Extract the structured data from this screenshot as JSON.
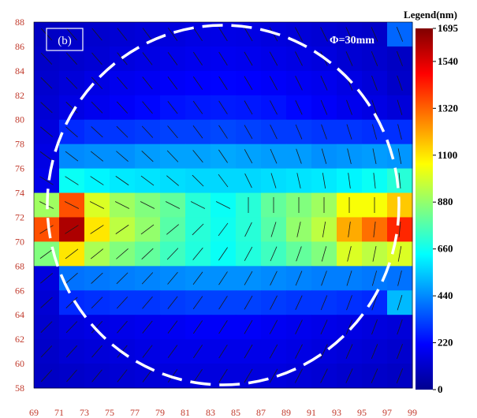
{
  "chart_data": {
    "type": "heatmap",
    "panel_label": "(b)",
    "annotation": "Φ=30mm",
    "legend_title": "Legend(nm)",
    "x_ticks": [
      "69",
      "71",
      "73",
      "75",
      "77",
      "79",
      "81",
      "83",
      "85",
      "87",
      "89",
      "91",
      "93",
      "95",
      "97",
      "99"
    ],
    "y_ticks": [
      "58",
      "60",
      "62",
      "64",
      "66",
      "68",
      "70",
      "72",
      "74",
      "76",
      "78",
      "80",
      "82",
      "84",
      "86",
      "88"
    ],
    "xlim": [
      69,
      99
    ],
    "ylim": [
      58,
      88
    ],
    "color_scale": {
      "min": 0,
      "max": 1695,
      "ticks": [
        "0",
        "220",
        "440",
        "660",
        "880",
        "1100",
        "1320",
        "1540",
        "1695"
      ],
      "colors": [
        "#00008f",
        "#0000ff",
        "#0080ff",
        "#00ffff",
        "#80ff80",
        "#ffff00",
        "#ff8000",
        "#ff0000",
        "#800000"
      ]
    },
    "row_y": [
      87,
      85,
      83,
      81,
      79,
      77,
      75,
      73,
      71,
      69,
      67,
      65,
      63,
      61,
      59
    ],
    "col_x": [
      70,
      72,
      74,
      76,
      78,
      80,
      82,
      84,
      86,
      88,
      90,
      92,
      94,
      96,
      98
    ],
    "values": [
      [
        100,
        110,
        120,
        130,
        140,
        150,
        160,
        165,
        160,
        150,
        140,
        130,
        120,
        110,
        380
      ],
      [
        110,
        120,
        130,
        150,
        160,
        170,
        180,
        185,
        180,
        170,
        160,
        150,
        130,
        120,
        100
      ],
      [
        120,
        140,
        160,
        180,
        190,
        200,
        210,
        215,
        210,
        200,
        190,
        180,
        160,
        140,
        110
      ],
      [
        130,
        160,
        180,
        200,
        220,
        240,
        250,
        255,
        250,
        240,
        220,
        200,
        180,
        160,
        140
      ],
      [
        150,
        280,
        300,
        300,
        310,
        320,
        320,
        330,
        320,
        310,
        310,
        300,
        300,
        290,
        290
      ],
      [
        160,
        440,
        450,
        450,
        470,
        480,
        480,
        490,
        480,
        470,
        470,
        450,
        460,
        470,
        460
      ],
      [
        170,
        650,
        620,
        600,
        590,
        580,
        570,
        570,
        570,
        580,
        590,
        600,
        620,
        650,
        700
      ],
      [
        900,
        1350,
        1000,
        900,
        850,
        800,
        700,
        650,
        700,
        800,
        850,
        900,
        1050,
        1050,
        1150
      ],
      [
        1350,
        1620,
        1100,
        950,
        880,
        780,
        700,
        660,
        700,
        780,
        880,
        950,
        1200,
        1300,
        1420
      ],
      [
        850,
        1100,
        920,
        850,
        800,
        740,
        690,
        650,
        690,
        740,
        800,
        850,
        1000,
        950,
        1000
      ],
      [
        150,
        400,
        410,
        420,
        430,
        440,
        450,
        450,
        450,
        440,
        430,
        420,
        420,
        410,
        400
      ],
      [
        130,
        280,
        290,
        300,
        300,
        310,
        320,
        320,
        320,
        310,
        300,
        300,
        290,
        280,
        520
      ],
      [
        120,
        150,
        160,
        170,
        180,
        190,
        200,
        200,
        200,
        190,
        180,
        170,
        160,
        150,
        140
      ],
      [
        110,
        130,
        140,
        150,
        160,
        170,
        170,
        170,
        170,
        170,
        160,
        150,
        140,
        130,
        120
      ],
      [
        100,
        110,
        120,
        130,
        140,
        150,
        150,
        150,
        150,
        150,
        140,
        130,
        120,
        110,
        100
      ]
    ]
  }
}
